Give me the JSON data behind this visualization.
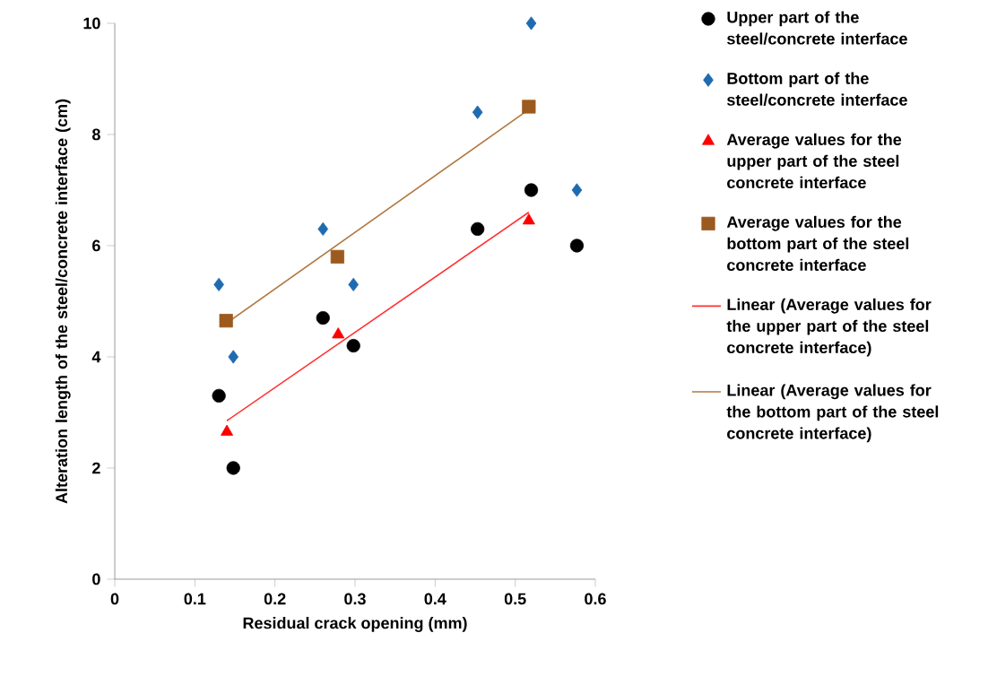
{
  "chart_data": {
    "type": "scatter",
    "xlabel": "Residual crack opening (mm)",
    "ylabel": "Alteration length of the steel/concrete interface (cm)",
    "xlim": [
      0,
      0.6
    ],
    "ylim": [
      0,
      10
    ],
    "xticks": [
      0,
      0.1,
      0.2,
      0.3,
      0.4,
      0.5,
      0.6
    ],
    "yticks": [
      0,
      2,
      4,
      6,
      8,
      10
    ],
    "grid": false,
    "legend": "right",
    "series": [
      {
        "name": "Upper part of the steel/concrete interface",
        "marker": "circle",
        "color": "#000000",
        "x": [
          0.13,
          0.148,
          0.26,
          0.298,
          0.453,
          0.52,
          0.577
        ],
        "values": [
          3.3,
          2.0,
          4.7,
          4.2,
          6.3,
          7.0,
          6.0
        ]
      },
      {
        "name": "Bottom part of the steel/concrete interface",
        "marker": "diamond",
        "color": "#1f6bb0",
        "x": [
          0.13,
          0.148,
          0.26,
          0.298,
          0.453,
          0.52,
          0.577
        ],
        "values": [
          5.3,
          4.0,
          6.3,
          5.3,
          8.4,
          10.0,
          7.0
        ]
      },
      {
        "name": "Average values  for the upper part of the steel concrete interface",
        "marker": "triangle",
        "color": "#ff0000",
        "x": [
          0.14,
          0.279,
          0.517
        ],
        "values": [
          2.65,
          4.4,
          6.45
        ]
      },
      {
        "name": "Average values  for the bottom part of the steel concrete interface",
        "marker": "square",
        "color": "#9c5a1e",
        "x": [
          0.139,
          0.278,
          0.517
        ],
        "values": [
          4.65,
          5.8,
          8.5
        ]
      },
      {
        "name": "Linear (Average  values for the upper part of the steel concrete interface)",
        "type": "line",
        "marker": "none",
        "line_style": "solid",
        "color": "#ff3030",
        "x": [
          0.14,
          0.517
        ],
        "values": [
          2.85,
          6.6
        ]
      },
      {
        "name": "Linear (Average  values for the bottom part of the steel concrete interface)",
        "type": "line",
        "marker": "none",
        "line_style": "solid",
        "color": "#b07840",
        "x": [
          0.139,
          0.517
        ],
        "values": [
          4.6,
          8.45
        ]
      }
    ]
  }
}
